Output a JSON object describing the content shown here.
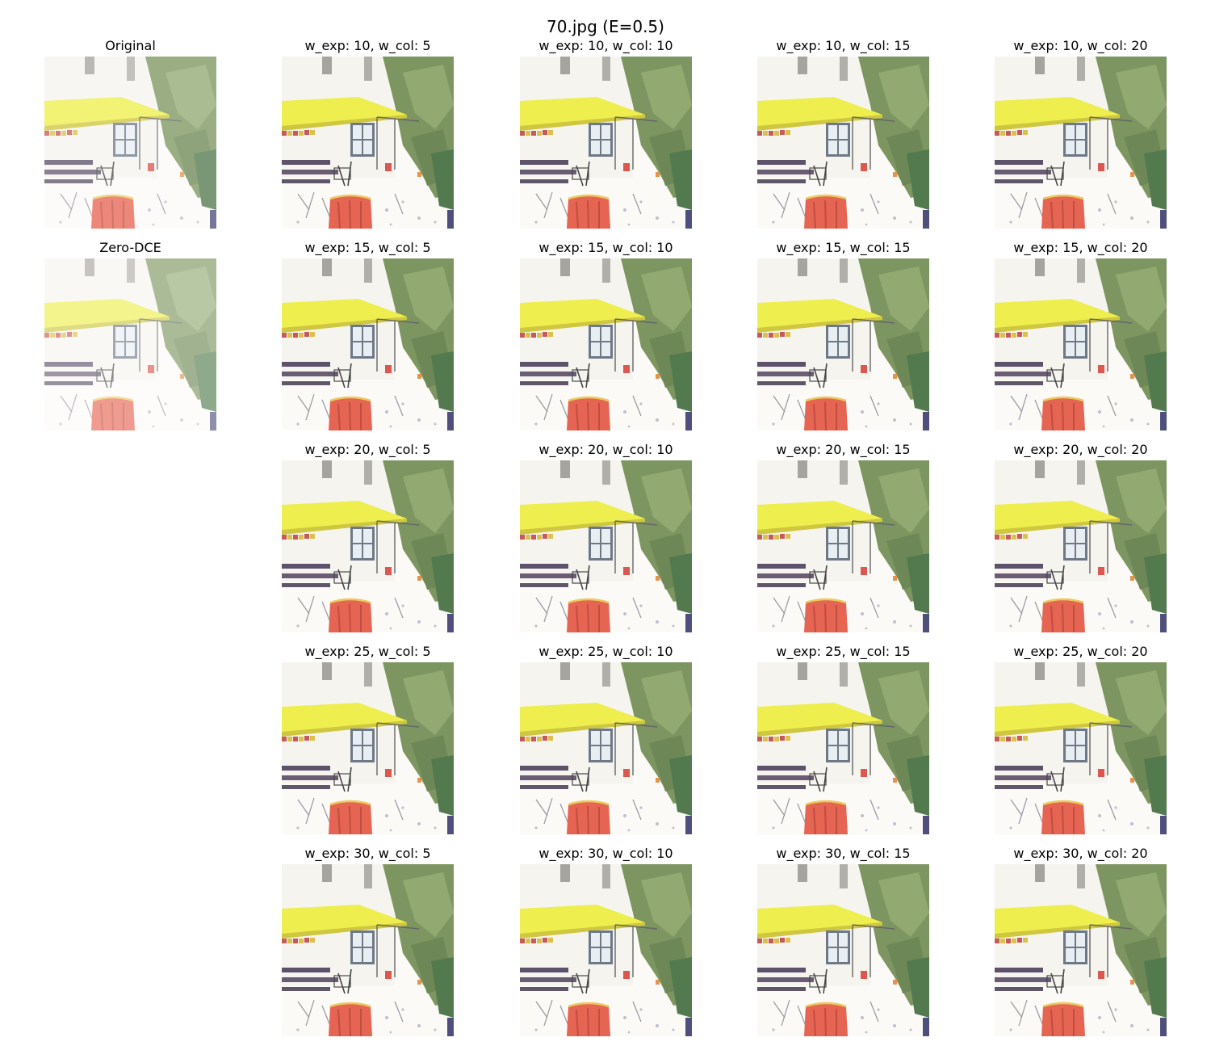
{
  "figure": {
    "title": "70.jpg (E=0.5)"
  },
  "panels": [
    {
      "id": "original",
      "title": "Original",
      "col": 0,
      "row": 0,
      "variant": "original"
    },
    {
      "id": "zero-dce",
      "title": "Zero-DCE",
      "col": 0,
      "row": 1,
      "variant": "faded"
    },
    {
      "id": "e10c5",
      "title": "w_exp: 10, w_col: 5",
      "col": 1,
      "row": 0,
      "variant": "enhanced"
    },
    {
      "id": "e10c10",
      "title": "w_exp: 10, w_col: 10",
      "col": 2,
      "row": 0,
      "variant": "enhanced"
    },
    {
      "id": "e10c15",
      "title": "w_exp: 10, w_col: 15",
      "col": 3,
      "row": 0,
      "variant": "enhanced"
    },
    {
      "id": "e10c20",
      "title": "w_exp: 10, w_col: 20",
      "col": 4,
      "row": 0,
      "variant": "enhanced"
    },
    {
      "id": "e15c5",
      "title": "w_exp: 15, w_col: 5",
      "col": 1,
      "row": 1,
      "variant": "enhanced"
    },
    {
      "id": "e15c10",
      "title": "w_exp: 15, w_col: 10",
      "col": 2,
      "row": 1,
      "variant": "enhanced"
    },
    {
      "id": "e15c15",
      "title": "w_exp: 15, w_col: 15",
      "col": 3,
      "row": 1,
      "variant": "enhanced"
    },
    {
      "id": "e15c20",
      "title": "w_exp: 15, w_col: 20",
      "col": 4,
      "row": 1,
      "variant": "enhanced"
    },
    {
      "id": "e20c5",
      "title": "w_exp: 20, w_col: 5",
      "col": 1,
      "row": 2,
      "variant": "enhanced"
    },
    {
      "id": "e20c10",
      "title": "w_exp: 20, w_col: 10",
      "col": 2,
      "row": 2,
      "variant": "enhanced"
    },
    {
      "id": "e20c15",
      "title": "w_exp: 20, w_col: 15",
      "col": 3,
      "row": 2,
      "variant": "enhanced"
    },
    {
      "id": "e20c20",
      "title": "w_exp: 20, w_col: 20",
      "col": 4,
      "row": 2,
      "variant": "enhanced"
    },
    {
      "id": "e25c5",
      "title": "w_exp: 25, w_col: 5",
      "col": 1,
      "row": 3,
      "variant": "enhanced"
    },
    {
      "id": "e25c10",
      "title": "w_exp: 25, w_col: 10",
      "col": 2,
      "row": 3,
      "variant": "enhanced"
    },
    {
      "id": "e25c15",
      "title": "w_exp: 25, w_col: 15",
      "col": 3,
      "row": 3,
      "variant": "enhanced"
    },
    {
      "id": "e25c20",
      "title": "w_exp: 25, w_col: 20",
      "col": 4,
      "row": 3,
      "variant": "enhanced"
    },
    {
      "id": "e30c5",
      "title": "w_exp: 30, w_col: 5",
      "col": 1,
      "row": 4,
      "variant": "enhanced"
    },
    {
      "id": "e30c10",
      "title": "w_exp: 30, w_col: 10",
      "col": 2,
      "row": 4,
      "variant": "enhanced"
    },
    {
      "id": "e30c15",
      "title": "w_exp: 30, w_col: 15",
      "col": 3,
      "row": 4,
      "variant": "enhanced"
    },
    {
      "id": "e30c20",
      "title": "w_exp: 30, w_col: 20",
      "col": 4,
      "row": 4,
      "variant": "enhanced"
    }
  ]
}
